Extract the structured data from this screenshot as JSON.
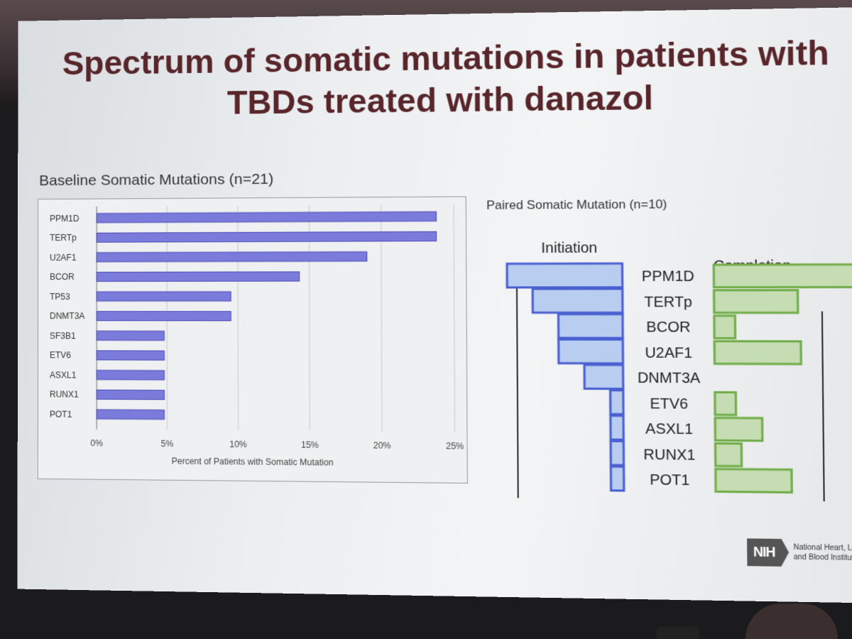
{
  "slide": {
    "title": "Spectrum of somatic mutations in patients with TBDs treated with danazol",
    "logo_abbr": "NIH",
    "logo_text": "National Heart, Lung, and Blood Institute"
  },
  "colors": {
    "title": "#58262a",
    "bar_purple": "#7b7bdc",
    "bar_blue": "#b9cdf0",
    "edge_blue": "#4a60d0",
    "bar_green": "#c6ddb4",
    "edge_green": "#72ad4a"
  },
  "chart_data": [
    {
      "type": "bar",
      "orientation": "horizontal",
      "title": "Baseline Somatic Mutations (n=21)",
      "categories": [
        "PPM1D",
        "TERTp",
        "U2AF1",
        "BCOR",
        "TP53",
        "DNMT3A",
        "SF3B1",
        "ETV6",
        "ASXL1",
        "RUNX1",
        "POT1"
      ],
      "values": [
        23.8,
        23.8,
        19.0,
        14.3,
        9.5,
        9.5,
        4.8,
        4.8,
        4.8,
        4.8,
        4.8
      ],
      "xlabel": "Percent of Patients with Somatic Mutation",
      "xticks": [
        "0%",
        "5%",
        "10%",
        "15%",
        "20%",
        "25%"
      ],
      "xlim": [
        0,
        25
      ],
      "grid": true
    },
    {
      "type": "bar",
      "orientation": "horizontal-butterfly",
      "title": "Paired Somatic Mutation (n=10)",
      "categories": [
        "PPM1D",
        "TERTp",
        "BCOR",
        "U2AF1",
        "DNMT3A",
        "ETV6",
        "ASXL1",
        "RUNX1",
        "POT1"
      ],
      "series": [
        {
          "name": "Initiation",
          "values": [
            4.5,
            3.5,
            2.5,
            2.5,
            1.5,
            0.5,
            0.5,
            0.5,
            0.5
          ]
        },
        {
          "name": "Completion",
          "values": [
            6.0,
            3.2,
            0.8,
            3.3,
            0,
            0.8,
            1.8,
            1.0,
            2.9
          ]
        }
      ],
      "axis_max_label_left": "5",
      "axis_max_label_right": "5",
      "xlim": [
        0,
        6
      ]
    }
  ]
}
